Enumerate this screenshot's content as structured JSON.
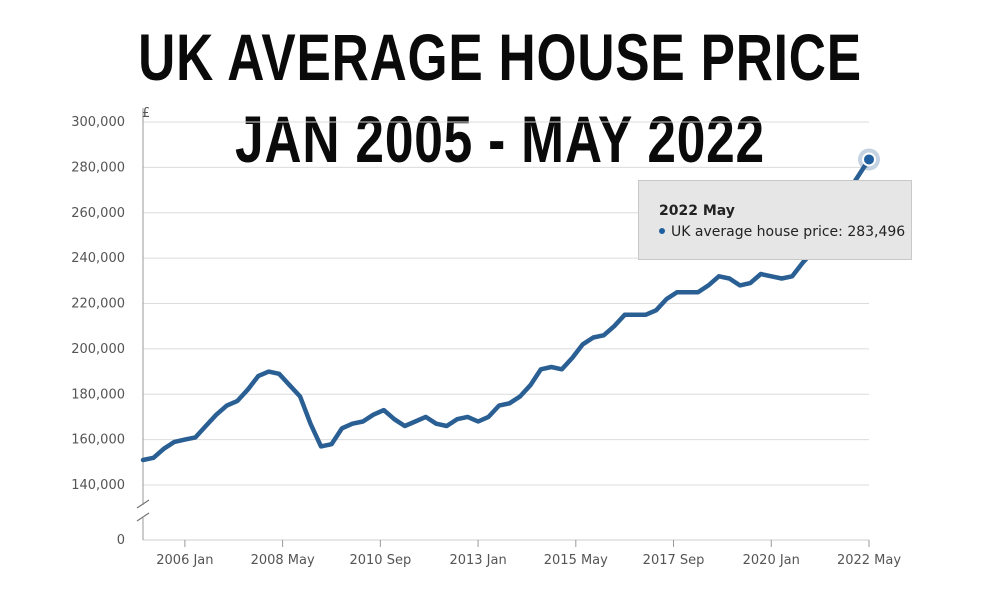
{
  "title_lines": [
    "UK AVERAGE HOUSE PRICE",
    "JAN 2005 - MAY 2022"
  ],
  "colors": {
    "line": "#2a5f94",
    "grid": "#dcdcdc",
    "axis": "#999999",
    "text": "#555555"
  },
  "tooltip": {
    "title": "2022 May",
    "series_label": "UK average house price: 283,496"
  },
  "chart_data": {
    "type": "line",
    "title": "UK AVERAGE HOUSE PRICE JAN 2005 - MAY 2022",
    "ylabel": "£",
    "xlabel": "",
    "ylim": [
      0,
      300000
    ],
    "y_axis_break": true,
    "y_ticks": [
      0,
      140000,
      160000,
      180000,
      200000,
      220000,
      240000,
      260000,
      280000,
      300000
    ],
    "y_tick_labels": [
      "0",
      "140,000",
      "160,000",
      "180,000",
      "200,000",
      "220,000",
      "240,000",
      "260,000",
      "280,000",
      "300,000"
    ],
    "x_ticks": [
      "2006-01",
      "2008-05",
      "2010-09",
      "2013-01",
      "2015-05",
      "2017-09",
      "2020-01",
      "2022-05"
    ],
    "x_tick_labels": [
      "2006 Jan",
      "2008 May",
      "2010 Sep",
      "2013 Jan",
      "2015 May",
      "2017 Sep",
      "2020 Jan",
      "2022 May"
    ],
    "grid": true,
    "series": [
      {
        "name": "UK average house price",
        "x": [
          "2005-01",
          "2005-04",
          "2005-07",
          "2005-10",
          "2006-01",
          "2006-04",
          "2006-07",
          "2006-10",
          "2007-01",
          "2007-04",
          "2007-07",
          "2007-10",
          "2008-01",
          "2008-04",
          "2008-07",
          "2008-10",
          "2009-01",
          "2009-04",
          "2009-07",
          "2009-10",
          "2010-01",
          "2010-04",
          "2010-07",
          "2010-10",
          "2011-01",
          "2011-04",
          "2011-07",
          "2011-10",
          "2012-01",
          "2012-04",
          "2012-07",
          "2012-10",
          "2013-01",
          "2013-04",
          "2013-07",
          "2013-10",
          "2014-01",
          "2014-04",
          "2014-07",
          "2014-10",
          "2015-01",
          "2015-04",
          "2015-07",
          "2015-10",
          "2016-01",
          "2016-04",
          "2016-07",
          "2016-10",
          "2017-01",
          "2017-04",
          "2017-07",
          "2017-10",
          "2018-01",
          "2018-04",
          "2018-07",
          "2018-10",
          "2019-01",
          "2019-04",
          "2019-07",
          "2019-10",
          "2020-01",
          "2020-04",
          "2020-07",
          "2020-10",
          "2021-01",
          "2021-04",
          "2021-07",
          "2021-10",
          "2022-01",
          "2022-05"
        ],
        "values": [
          151000,
          152000,
          156000,
          159000,
          160000,
          161000,
          166000,
          171000,
          175000,
          177000,
          182000,
          188000,
          190000,
          189000,
          184000,
          179000,
          167000,
          157000,
          158000,
          165000,
          167000,
          168000,
          171000,
          173000,
          169000,
          166000,
          168000,
          170000,
          167000,
          166000,
          169000,
          170000,
          168000,
          170000,
          175000,
          176000,
          179000,
          184000,
          191000,
          192000,
          191000,
          196000,
          202000,
          205000,
          206000,
          210000,
          215000,
          215000,
          215000,
          217000,
          222000,
          225000,
          225000,
          225000,
          228000,
          232000,
          231000,
          228000,
          229000,
          233000,
          232000,
          231000,
          232000,
          238000,
          243000,
          250000,
          258000,
          266000,
          274000,
          283496
        ]
      }
    ]
  }
}
